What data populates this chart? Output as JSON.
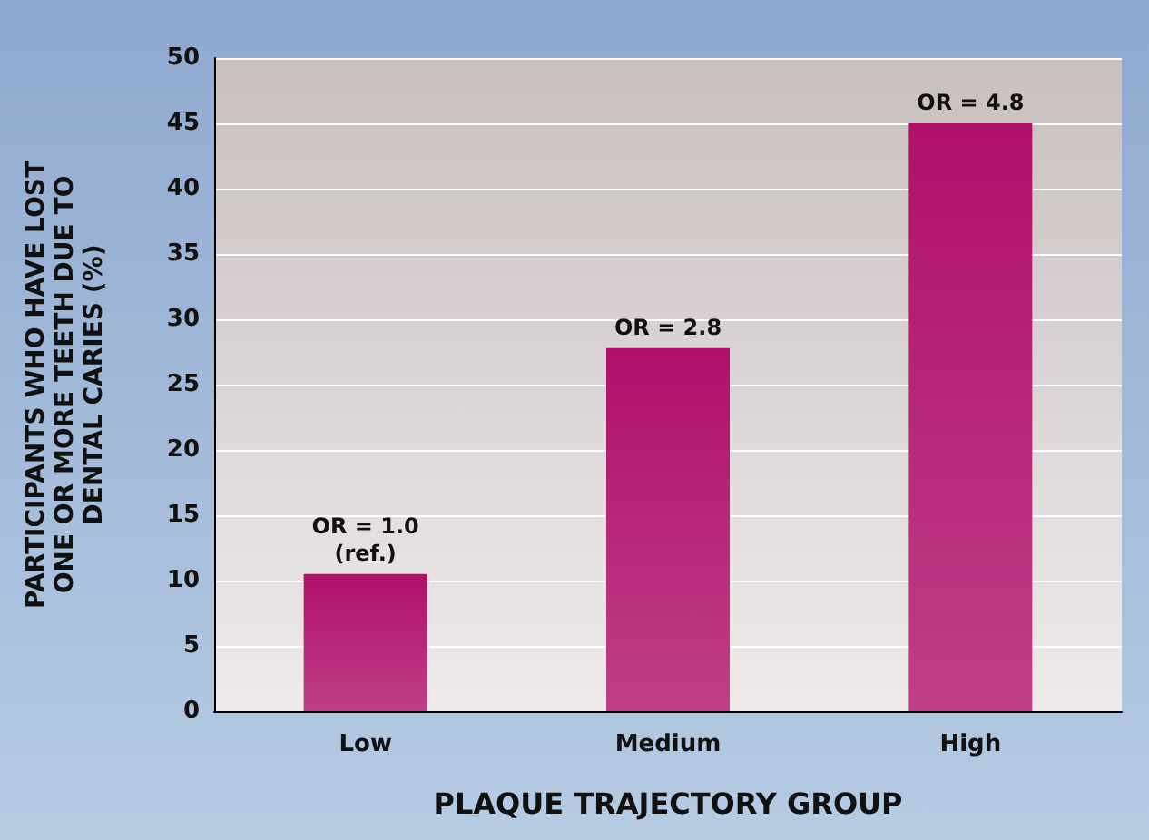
{
  "chart_data": {
    "type": "bar",
    "xlabel": "PLAQUE TRAJECTORY GROUP",
    "ylabel": "PARTICIPANTS WHO HAVE LOST ONE OR MORE TEETH DUE TO DENTAL CARIES (%)",
    "categories": [
      "Low",
      "Medium",
      "High"
    ],
    "values": [
      10.5,
      27.8,
      45
    ],
    "color": "#b0106a",
    "ylim": [
      0,
      50
    ],
    "yticks": [
      0,
      5,
      10,
      15,
      20,
      25,
      30,
      35,
      40,
      45,
      50
    ],
    "grid": "y",
    "annotations": [
      {
        "text": "OR = 1.0\n(ref.)",
        "x": "Low",
        "y": 10.5
      },
      {
        "text": "OR = 2.8",
        "x": "Medium",
        "y": 27.8
      },
      {
        "text": "OR = 4.8",
        "x": "High",
        "y": 45
      }
    ]
  }
}
